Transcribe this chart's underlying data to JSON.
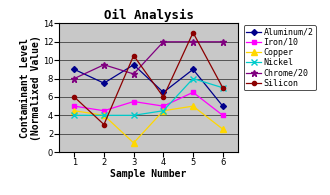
{
  "title": "Oil Analysis",
  "xlabel": "Sample Number",
  "ylabel": "Contaminant Level\n(Normalixed Value)",
  "xlim": [
    0.5,
    6.5
  ],
  "ylim": [
    0.0,
    14.0
  ],
  "yticks": [
    0.0,
    2.0,
    4.0,
    6.0,
    8.0,
    10.0,
    12.0,
    14.0
  ],
  "xticks": [
    1,
    2,
    3,
    4,
    5,
    6
  ],
  "x": [
    1,
    2,
    3,
    4,
    5,
    6
  ],
  "series": [
    {
      "label": "Aluminum/2",
      "color": "#00008B",
      "marker": "D",
      "markersize": 3,
      "values": [
        9.0,
        7.5,
        9.5,
        6.5,
        9.0,
        5.0
      ]
    },
    {
      "label": "Iron/10",
      "color": "#FF00FF",
      "marker": "s",
      "markersize": 3,
      "values": [
        5.0,
        4.5,
        5.5,
        5.0,
        6.5,
        4.0
      ]
    },
    {
      "label": "Copper",
      "color": "#FFD700",
      "marker": "^",
      "markersize": 4,
      "values": [
        4.5,
        4.0,
        1.0,
        4.5,
        5.0,
        2.5
      ]
    },
    {
      "label": "Nickel",
      "color": "#00CCCC",
      "marker": "x",
      "markersize": 4,
      "values": [
        4.0,
        4.0,
        4.0,
        4.5,
        8.0,
        7.0
      ]
    },
    {
      "label": "Chrome/20",
      "color": "#800080",
      "marker": "*",
      "markersize": 5,
      "values": [
        8.0,
        9.5,
        8.5,
        12.0,
        12.0,
        12.0
      ]
    },
    {
      "label": "Silicon",
      "color": "#8B0000",
      "marker": "o",
      "markersize": 3,
      "values": [
        6.0,
        3.0,
        10.5,
        6.0,
        13.0,
        7.0
      ]
    }
  ],
  "background_color": "#C8C8C8",
  "fig_background": "#FFFFFF",
  "title_fontsize": 9,
  "axis_label_fontsize": 7,
  "tick_fontsize": 6,
  "legend_fontsize": 6
}
